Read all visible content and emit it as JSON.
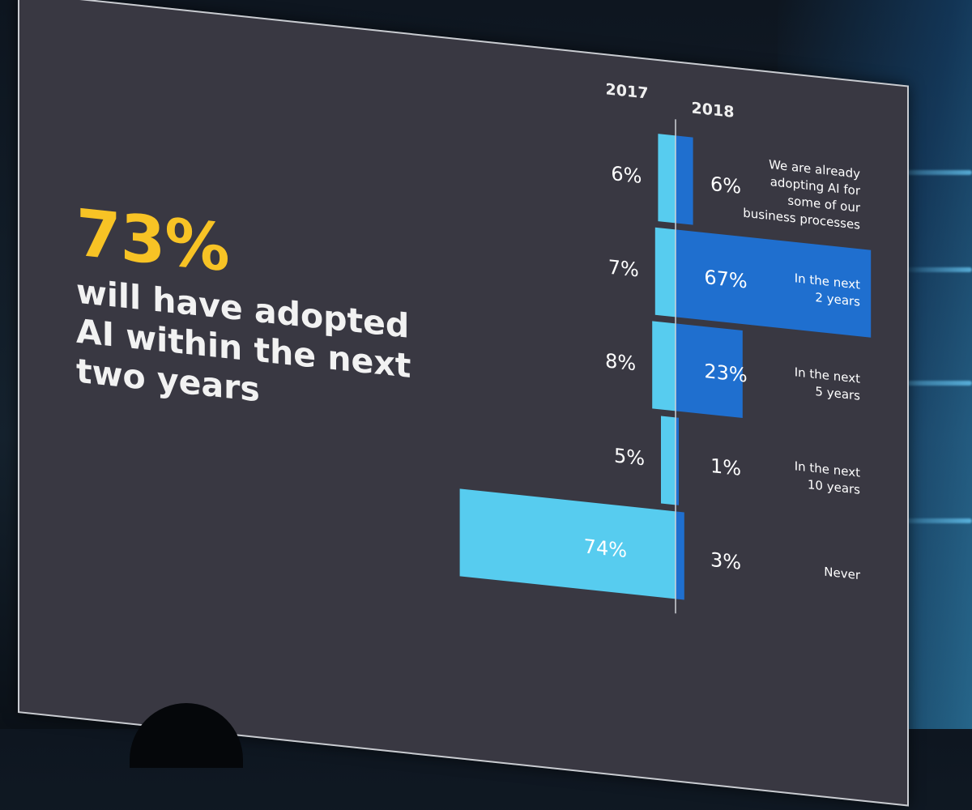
{
  "headline": {
    "stat": "73%",
    "description": "will have adopted AI within the next two years"
  },
  "colors": {
    "stat_yellow": "#f7c325",
    "series_2017": "#57ccef",
    "series_2018": "#1f6fcf",
    "slide_background": "#393842"
  },
  "chart_data": {
    "type": "bar",
    "orientation": "horizontal-diverging",
    "series": [
      {
        "name": "2017",
        "values": [
          6,
          7,
          8,
          5,
          74
        ]
      },
      {
        "name": "2018",
        "values": [
          6,
          67,
          23,
          1,
          3
        ]
      }
    ],
    "categories": [
      "We are already adopting AI for some of our business processes",
      "In the next 2 years",
      "In the next 5 years",
      "In the next 10 years",
      "Never"
    ],
    "labels_2017": [
      "6%",
      "7%",
      "8%",
      "5%",
      "74%"
    ],
    "labels_2018": [
      "6%",
      "67%",
      "23%",
      "1%",
      "3%"
    ],
    "unit": "%",
    "legend_placement": "top (column headers)"
  }
}
